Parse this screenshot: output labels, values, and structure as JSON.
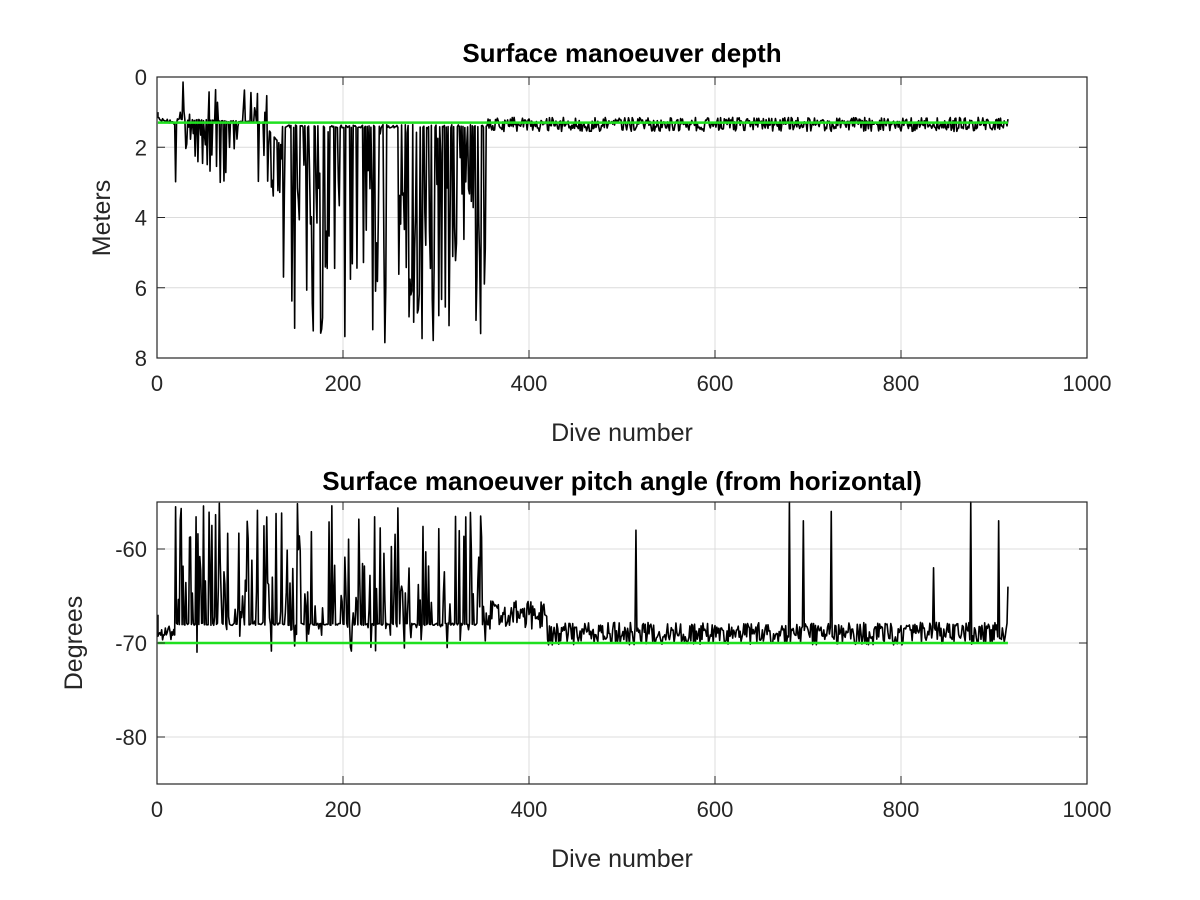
{
  "chart_data": [
    {
      "type": "line",
      "title": "Surface manoeuver depth",
      "xlabel": "Dive number",
      "ylabel": "Meters",
      "xlim": [
        0,
        1000
      ],
      "ylim": [
        0,
        8
      ],
      "y_reversed": true,
      "grid": true,
      "xticks": [
        "0",
        "200",
        "400",
        "600",
        "800",
        "1000"
      ],
      "yticks": [
        "0",
        "2",
        "4",
        "6",
        "8"
      ],
      "xtick_values": [
        0,
        200,
        400,
        600,
        800,
        1000
      ],
      "ytick_values": [
        0,
        2,
        4,
        6,
        8
      ],
      "series_color": "#000000",
      "reference_value": 1.3,
      "reference_color": "#1fe01f",
      "series_endpoints": [
        [
          1,
          1.0
        ],
        [
          915,
          1.2
        ]
      ],
      "segments": [
        {
          "x": [
            1,
            20
          ],
          "y": [
            1.2,
            1.3
          ],
          "noise": 0.05
        },
        {
          "x": [
            20,
            120
          ],
          "y": [
            1.2,
            1.3
          ],
          "spike_min": 0.1,
          "spike_max": 3.0
        },
        {
          "x": [
            120,
            135
          ],
          "y": [
            1.5,
            2.0
          ],
          "spike_min": 1.3,
          "spike_max": 3.5
        },
        {
          "x": [
            135,
            355
          ],
          "y": [
            1.4,
            1.4
          ],
          "spike_min": 1.4,
          "spike_max": 7.6
        },
        {
          "x": [
            355,
            915
          ],
          "y": [
            1.35,
            1.35
          ],
          "noise": 0.2
        }
      ]
    },
    {
      "type": "line",
      "title": "Surface manoeuver pitch angle (from horizontal)",
      "xlabel": "Dive number",
      "ylabel": "Degrees",
      "xlim": [
        0,
        1000
      ],
      "ylim": [
        -85,
        -55
      ],
      "y_reversed": false,
      "grid": true,
      "xticks": [
        "0",
        "200",
        "400",
        "600",
        "800",
        "1000"
      ],
      "yticks": [
        "-60",
        "-70",
        "-80"
      ],
      "xtick_values": [
        0,
        200,
        400,
        600,
        800,
        1000
      ],
      "ytick_values": [
        -60,
        -70,
        -80
      ],
      "series_color": "#000000",
      "reference_value": -70,
      "reference_color": "#1fe01f",
      "series_endpoints": [
        [
          1,
          -67
        ],
        [
          915,
          -64
        ]
      ],
      "segments": [
        {
          "x": [
            1,
            20
          ],
          "y": [
            -69,
            -69
          ],
          "noise": 0.8
        },
        {
          "x": [
            20,
            355
          ],
          "y": [
            -68,
            -68
          ],
          "spike_min": -71,
          "spike_max": -55
        },
        {
          "x": [
            355,
            420
          ],
          "y": [
            -67,
            -67
          ],
          "noise": 1.5
        },
        {
          "x": [
            420,
            915
          ],
          "y": [
            -69,
            -69
          ],
          "noise": 1.2,
          "spikes": [
            [
              515,
              -58
            ],
            [
              680,
              -55
            ],
            [
              695,
              -57
            ],
            [
              725,
              -56
            ],
            [
              835,
              -62
            ],
            [
              875,
              -55
            ],
            [
              905,
              -57
            ]
          ]
        }
      ]
    }
  ]
}
